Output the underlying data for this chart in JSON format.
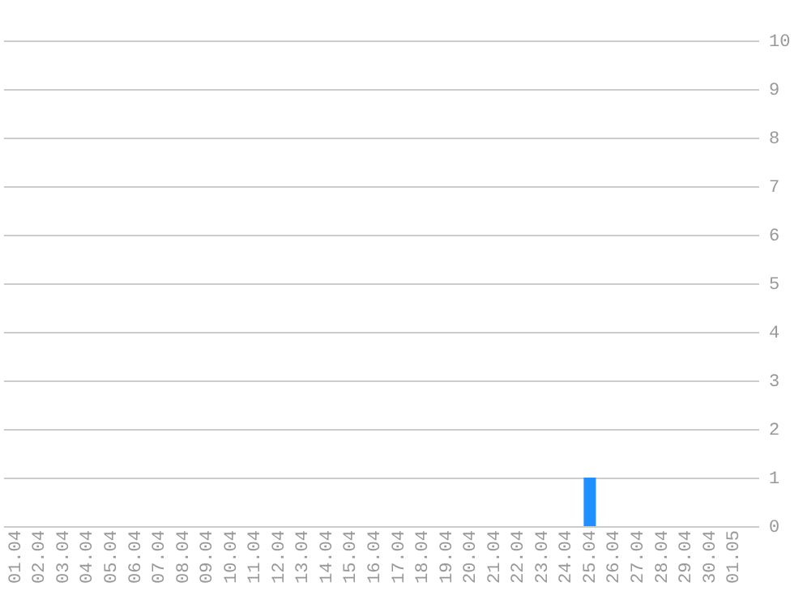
{
  "chart_data": {
    "type": "bar",
    "categories": [
      "01.04",
      "02.04",
      "03.04",
      "04.04",
      "05.04",
      "06.04",
      "07.04",
      "08.04",
      "09.04",
      "10.04",
      "11.04",
      "12.04",
      "13.04",
      "14.04",
      "15.04",
      "16.04",
      "17.04",
      "18.04",
      "19.04",
      "20.04",
      "21.04",
      "22.04",
      "23.04",
      "24.04",
      "25.04",
      "26.04",
      "27.04",
      "28.04",
      "29.04",
      "30.04",
      "01.05"
    ],
    "values": [
      0,
      0,
      0,
      0,
      0,
      0,
      0,
      0,
      0,
      0,
      0,
      0,
      0,
      0,
      0,
      0,
      0,
      0,
      0,
      0,
      0,
      0,
      0,
      0,
      1,
      0,
      0,
      0,
      0,
      0,
      0
    ],
    "color": "#1e90ff",
    "ylim": [
      0,
      10
    ],
    "yticks": [
      0,
      1,
      2,
      3,
      4,
      5,
      6,
      7,
      8,
      9,
      10
    ],
    "grid": "y"
  }
}
